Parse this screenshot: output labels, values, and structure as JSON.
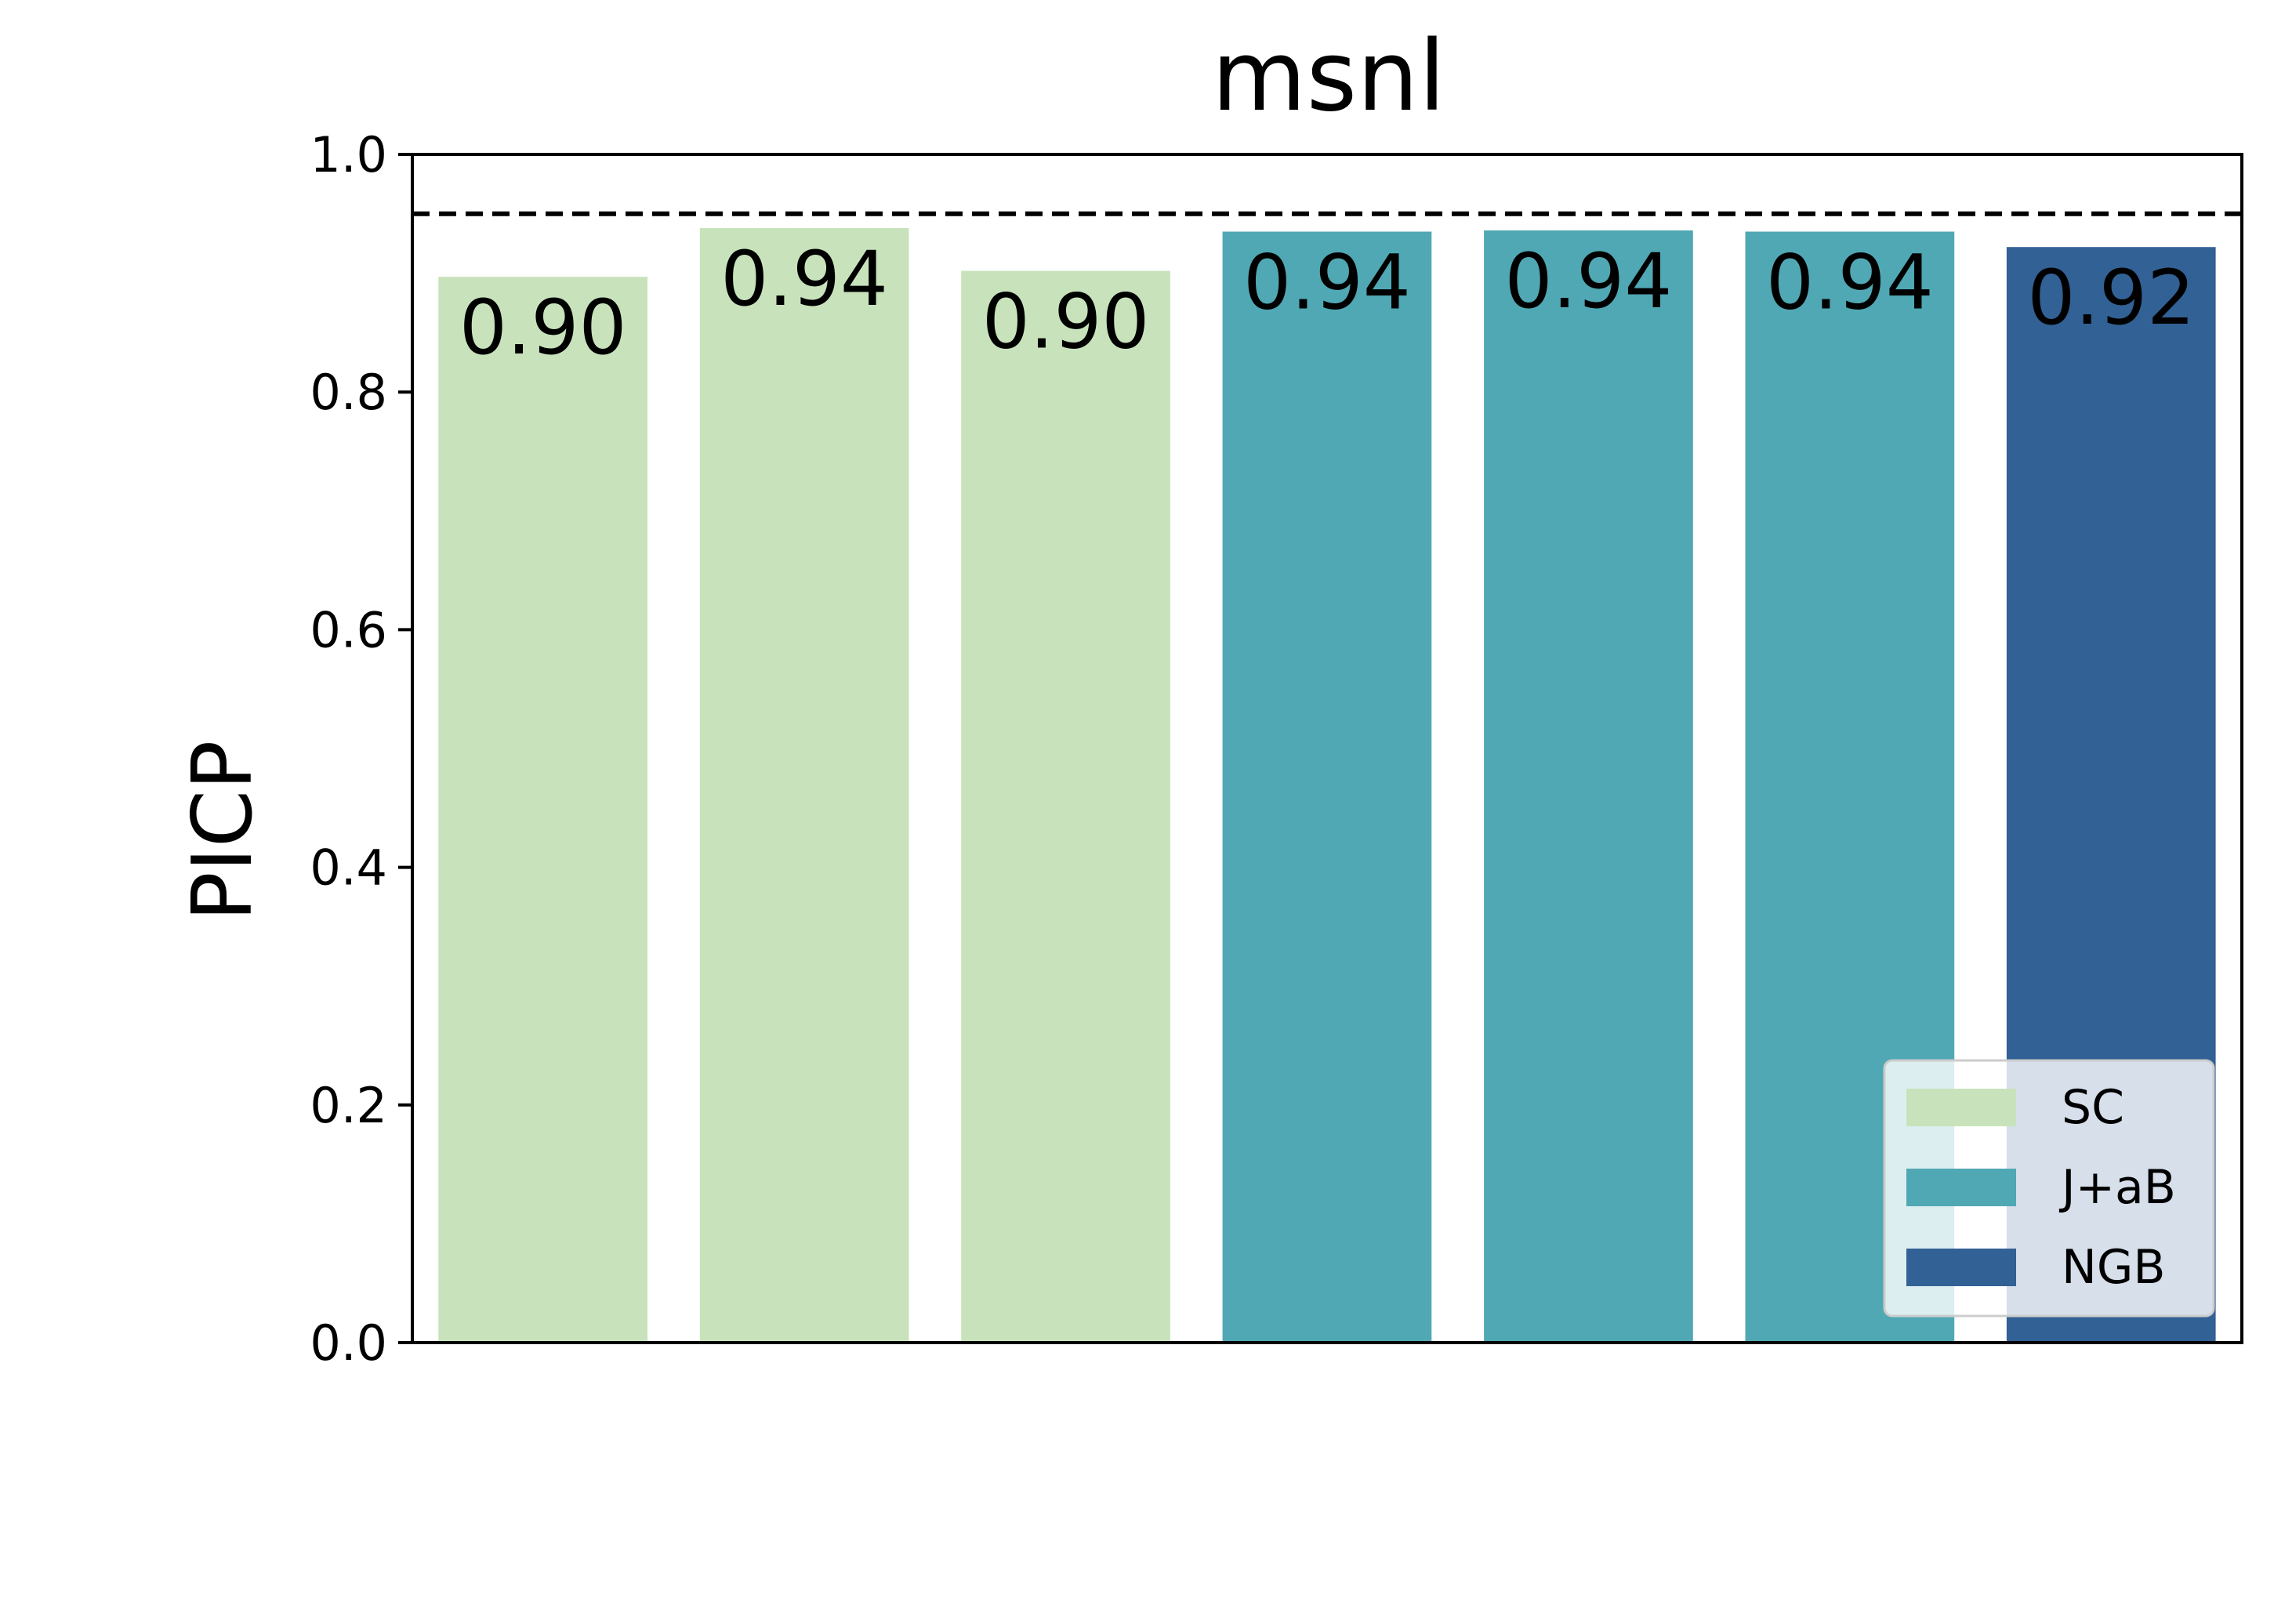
{
  "chart_data": {
    "type": "bar",
    "title": "msnl",
    "xlabel": "",
    "ylabel": "PICP",
    "ylim": [
      0.0,
      1.0
    ],
    "yticks": [
      0.0,
      0.2,
      0.4,
      0.6,
      0.8,
      1.0
    ],
    "ytick_labels": [
      "0.0",
      "0.2",
      "0.4",
      "0.6",
      "0.8",
      "1.0"
    ],
    "grid": false,
    "reference_line": {
      "value": 0.95,
      "style": "dashed",
      "color": "#000000"
    },
    "bars": [
      {
        "group": "SC",
        "value": 0.897,
        "label": "0.90"
      },
      {
        "group": "SC",
        "value": 0.938,
        "label": "0.94"
      },
      {
        "group": "SC",
        "value": 0.902,
        "label": "0.90"
      },
      {
        "group": "J+aB",
        "value": 0.935,
        "label": "0.94"
      },
      {
        "group": "J+aB",
        "value": 0.936,
        "label": "0.94"
      },
      {
        "group": "J+aB",
        "value": 0.935,
        "label": "0.94"
      },
      {
        "group": "NGB",
        "value": 0.922,
        "label": "0.92"
      }
    ],
    "legend": {
      "placement": "lower-right",
      "entries": [
        {
          "name": "SC",
          "color": "#c8e3bc"
        },
        {
          "name": "J+aB",
          "color": "#50a8b4"
        },
        {
          "name": "NGB",
          "color": "#326195"
        }
      ]
    }
  }
}
